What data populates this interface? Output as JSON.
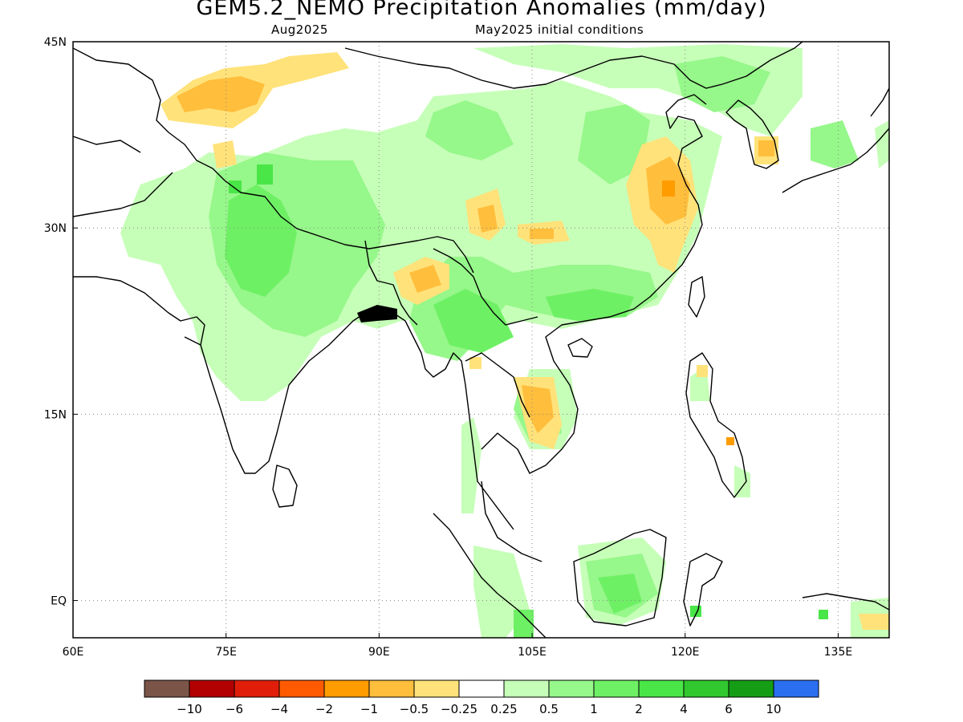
{
  "header": {
    "title": "GEM5.2_NEMO Precipitation Anomalies (mm/day)",
    "subtitle_left": "Aug2025",
    "subtitle_right": "May2025 initial conditions"
  },
  "map": {
    "lon_range": [
      60,
      140
    ],
    "lat_range": [
      -3,
      45
    ],
    "lon_ticks": [
      {
        "value": 60,
        "label": "60E"
      },
      {
        "value": 75,
        "label": "75E"
      },
      {
        "value": 90,
        "label": "90E"
      },
      {
        "value": 105,
        "label": "105E"
      },
      {
        "value": 120,
        "label": "120E"
      },
      {
        "value": 135,
        "label": "135E"
      }
    ],
    "lat_ticks": [
      {
        "value": 45,
        "label": "45N"
      },
      {
        "value": 30,
        "label": "30N"
      },
      {
        "value": 15,
        "label": "15N"
      },
      {
        "value": 0,
        "label": "EQ"
      }
    ],
    "grid": "dotted"
  },
  "colorbar": {
    "colors": [
      "#7a5548",
      "#b30000",
      "#e01e0a",
      "#ff5a00",
      "#ff9c00",
      "#ffbe3c",
      "#ffe27a",
      "#ffffff",
      "#c6ffb8",
      "#96f78a",
      "#6ef064",
      "#4ae648",
      "#30c82e",
      "#159e15",
      "#2a6ff0"
    ],
    "labels": [
      "-10",
      "-6",
      "-4",
      "-2",
      "-1",
      "-0.5",
      "-0.25",
      "0.25",
      "0.5",
      "1",
      "2",
      "4",
      "6",
      "10"
    ]
  }
}
